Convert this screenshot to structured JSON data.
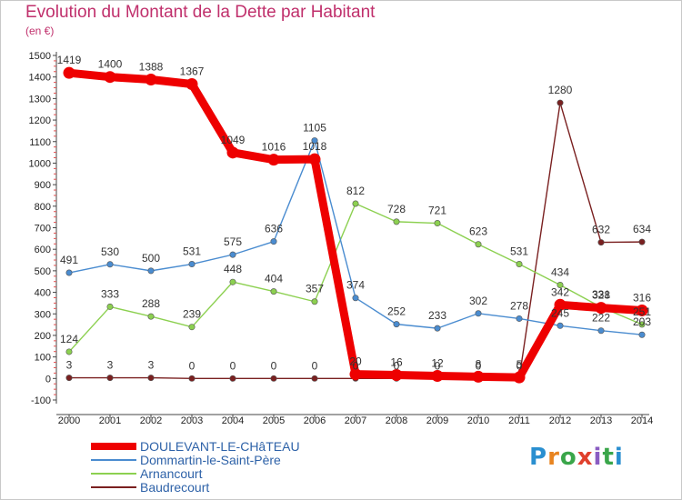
{
  "title": "Evolution du Montant de la Dette par Habitant",
  "subtitle": "(en €)",
  "logo_text": "Proxiti",
  "chart_data": {
    "type": "line",
    "title": "Evolution du Montant de la Dette par Habitant",
    "subtitle": "(en €)",
    "xlabel": "",
    "ylabel": "",
    "x": [
      "2000",
      "2001",
      "2002",
      "2003",
      "2004",
      "2005",
      "2006",
      "2007",
      "2008",
      "2009",
      "2010",
      "2011",
      "2012",
      "2013",
      "2014"
    ],
    "ylim": [
      -100,
      1500
    ],
    "yticks": [
      "-100",
      "0",
      "100",
      "200",
      "300",
      "400",
      "500",
      "600",
      "700",
      "800",
      "900",
      "1000",
      "1100",
      "1200",
      "1300",
      "1400",
      "1500"
    ],
    "grid": false,
    "legend_position": "bottom-left",
    "series": [
      {
        "name": "DOULEVANT-LE-CHâTEAU",
        "color": "#ee0000",
        "values": [
          1419,
          1400,
          1388,
          1367,
          1049,
          1016,
          1018,
          20,
          16,
          12,
          8,
          5,
          342,
          328,
          316
        ],
        "labels": [
          "1419",
          "1400",
          "1388",
          "1367",
          "1049",
          "1016",
          "1018",
          "20",
          "16",
          "12",
          "8",
          "5",
          "342",
          "328",
          "316"
        ]
      },
      {
        "name": "Dommartin-le-Saint-Père",
        "color": "#4a8cd0",
        "values": [
          491,
          530,
          500,
          531,
          575,
          636,
          1105,
          374,
          252,
          233,
          302,
          278,
          245,
          222,
          203
        ],
        "labels": [
          "491",
          "530",
          "500",
          "531",
          "575",
          "636",
          "1105",
          "374",
          "252",
          "233",
          "302",
          "278",
          "245",
          "222",
          "203"
        ]
      },
      {
        "name": "Arnancourt",
        "color": "#8cd050",
        "values": [
          124,
          333,
          288,
          239,
          448,
          404,
          357,
          812,
          728,
          721,
          623,
          531,
          434,
          331,
          251
        ],
        "labels": [
          "124",
          "333",
          "288",
          "239",
          "448",
          "404",
          "357",
          "812",
          "728",
          "721",
          "623",
          "531",
          "434",
          "331",
          "251"
        ]
      },
      {
        "name": "Baudrecourt",
        "color": "#7a2020",
        "values": [
          3,
          3,
          3,
          0,
          0,
          0,
          0,
          0,
          0,
          0,
          0,
          0,
          1280,
          632,
          634
        ],
        "labels": [
          "3",
          "3",
          "3",
          "0",
          "0",
          "0",
          "0",
          "0",
          "0",
          "0",
          "0",
          "0",
          "1280",
          "632",
          "634"
        ]
      }
    ]
  }
}
